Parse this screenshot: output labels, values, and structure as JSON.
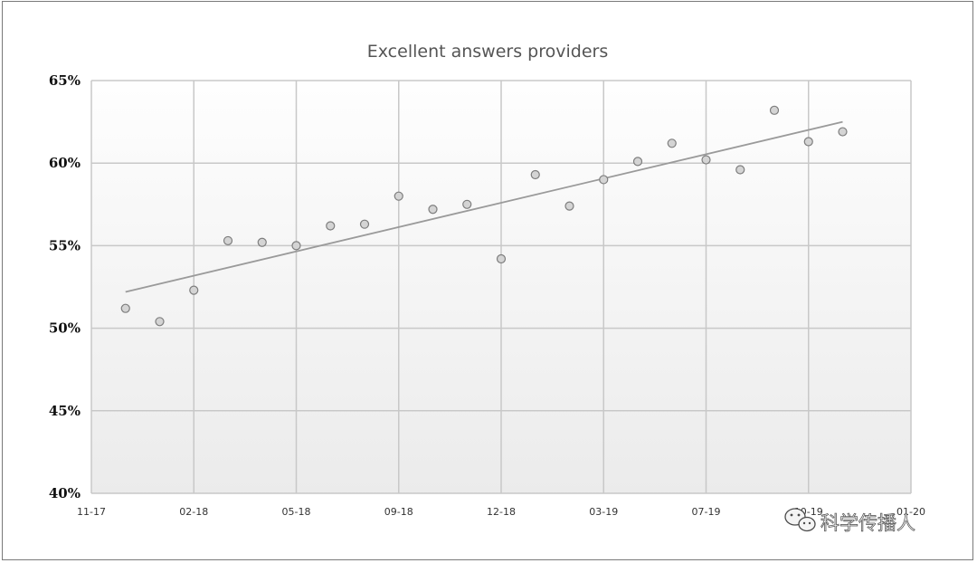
{
  "chart_data": {
    "type": "scatter",
    "title": "Excellent answers providers",
    "x_tick_labels": [
      "11-17",
      "02-18",
      "05-18",
      "09-18",
      "12-18",
      "03-19",
      "07-19",
      "10-19",
      "01-20"
    ],
    "y_tick_labels": [
      "40%",
      "45%",
      "50%",
      "55%",
      "60%",
      "65%"
    ],
    "ylim": [
      40,
      65
    ],
    "grid": true,
    "legend": "none",
    "series": [
      {
        "x": [
          "2017-12",
          "2018-01",
          "2018-02",
          "2018-03",
          "2018-04",
          "2018-05",
          "2018-06",
          "2018-07",
          "2018-08",
          "2018-09",
          "2018-10",
          "2018-11",
          "2018-12",
          "2019-01",
          "2019-02",
          "2019-03",
          "2019-04",
          "2019-05",
          "2019-06",
          "2019-07",
          "2019-08",
          "2019-09"
        ],
        "values": [
          51.2,
          50.4,
          52.3,
          55.3,
          55.2,
          55.0,
          56.2,
          56.3,
          58.0,
          57.2,
          57.5,
          54.2,
          59.3,
          57.4,
          59.0,
          60.1,
          61.2,
          60.2,
          59.6,
          63.2,
          61.3,
          61.9
        ]
      }
    ],
    "trendline": {
      "x": [
        "2017-12",
        "2019-09"
      ],
      "values": [
        52.2,
        62.5
      ]
    },
    "colors": {
      "marker_fill": "#d4d4d4",
      "marker_stroke": "#7d7d7d",
      "trendline": "#9a9a9a",
      "grid": "#c8c8c8",
      "plot_bg_top": "#fefefe",
      "plot_bg_bottom": "#ebebeb"
    },
    "watermark": {
      "text": "科学传播人",
      "icon": "wechat-logo-icon"
    }
  }
}
